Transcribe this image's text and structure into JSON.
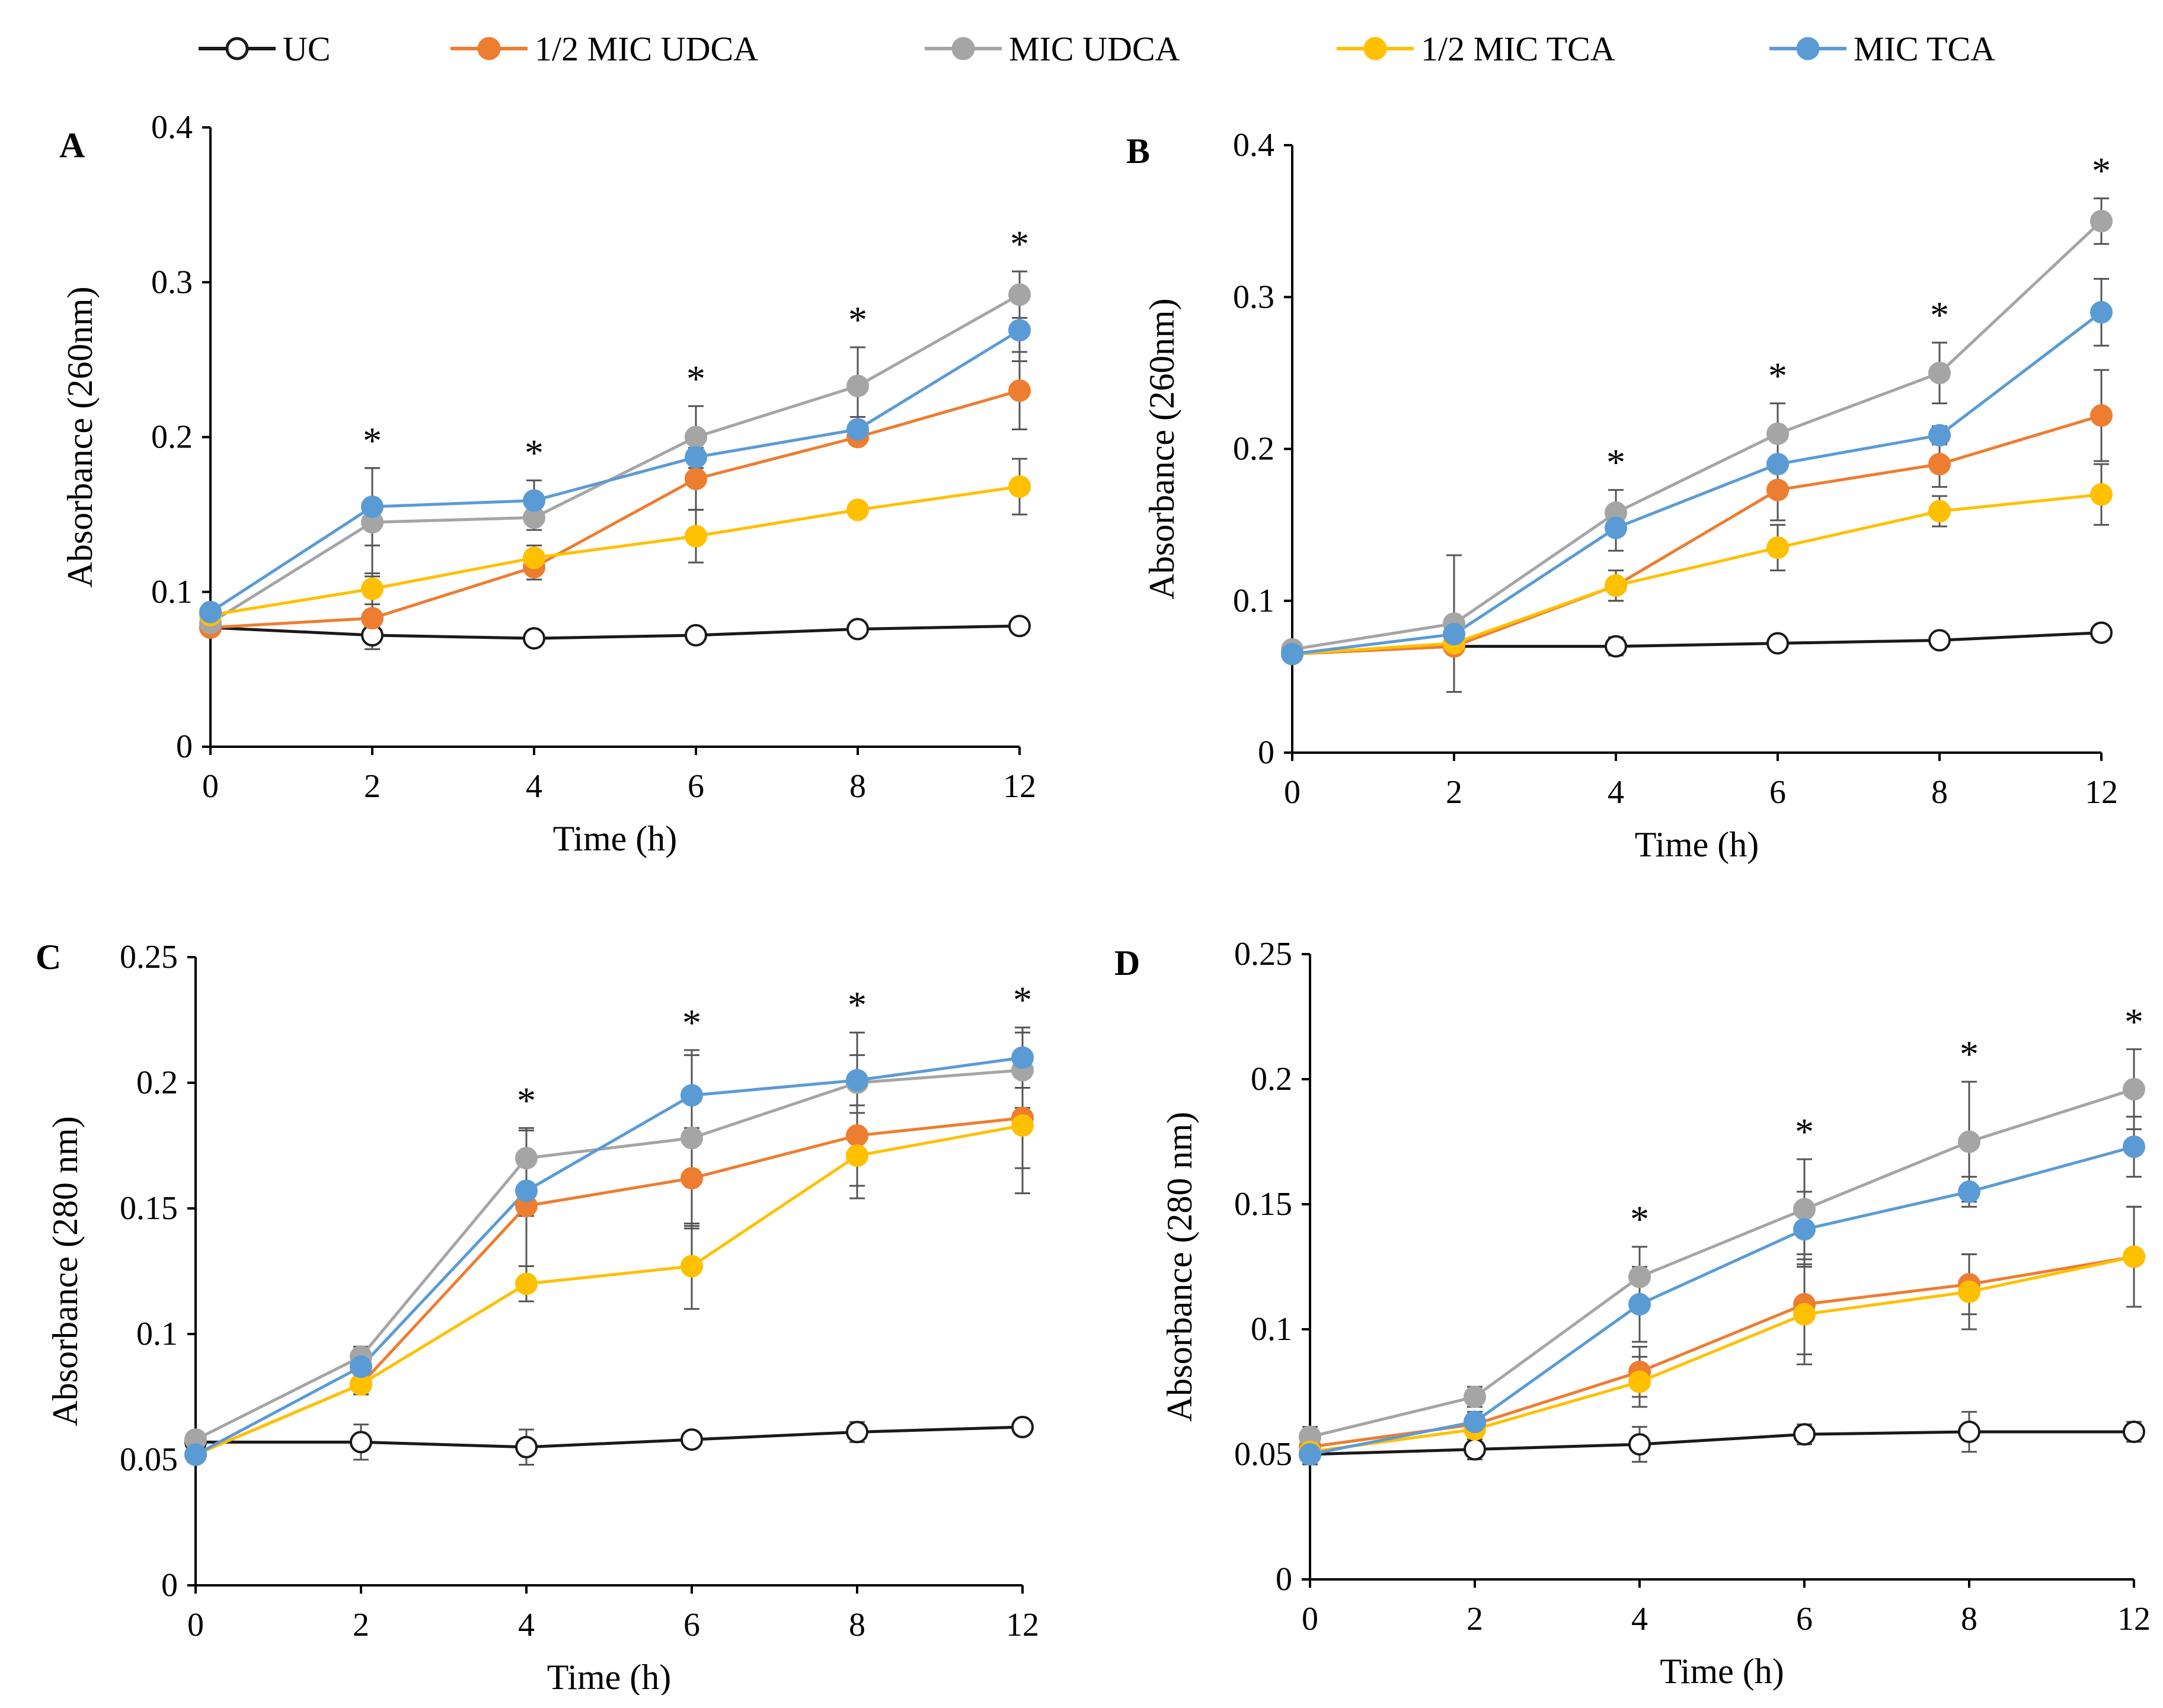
{
  "series_style": [
    {
      "name": "UC",
      "color": "#1a1a1a",
      "fill": "#ffffff"
    },
    {
      "name": "1/2 MIC UDCA",
      "color": "#ED7D31",
      "fill": "#ED7D31"
    },
    {
      "name": "MIC UDCA",
      "color": "#A5A5A5",
      "fill": "#A5A5A5"
    },
    {
      "name": "1/2 MIC TCA",
      "color": "#FFC000",
      "fill": "#FFC000"
    },
    {
      "name": "MIC TCA",
      "color": "#5B9BD5",
      "fill": "#5B9BD5"
    }
  ],
  "chart_data": [
    {
      "panel": "A",
      "type": "line",
      "xlabel": "Time (h)",
      "ylabel": "Absorbance (260nm)",
      "categories": [
        "0",
        "2",
        "4",
        "6",
        "8",
        "12"
      ],
      "ylim": [
        0,
        0.4
      ],
      "yticks": [
        "0",
        "0.1",
        "0.2",
        "0.3",
        "0.4"
      ],
      "significance": [
        false,
        true,
        true,
        true,
        true,
        true
      ],
      "series": [
        {
          "name": "UC",
          "values": [
            0.077,
            0.072,
            0.07,
            0.072,
            0.076,
            0.078
          ],
          "errors": [
            0.003,
            0.003,
            0.003,
            0.003,
            0.003,
            0.003
          ]
        },
        {
          "name": "1/2 MIC UDCA",
          "values": [
            0.077,
            0.083,
            0.116,
            0.173,
            0.2,
            0.23
          ],
          "errors": [
            0.004,
            0.02,
            0.008,
            0.02,
            0.004,
            0.025
          ]
        },
        {
          "name": "MIC UDCA",
          "values": [
            0.08,
            0.145,
            0.148,
            0.2,
            0.233,
            0.292
          ],
          "errors": [
            0.004,
            0.035,
            0.008,
            0.02,
            0.025,
            0.015
          ]
        },
        {
          "name": "1/2 MIC TCA",
          "values": [
            0.085,
            0.102,
            0.122,
            0.136,
            0.153,
            0.168
          ],
          "errors": [
            0.004,
            0.01,
            0.008,
            0.017,
            0.004,
            0.018
          ]
        },
        {
          "name": "MIC TCA",
          "values": [
            0.087,
            0.155,
            0.159,
            0.187,
            0.205,
            0.269
          ],
          "errors": [
            0.004,
            0.025,
            0.013,
            0.015,
            0.008,
            0.02
          ]
        }
      ]
    },
    {
      "panel": "B",
      "type": "line",
      "xlabel": "Time (h)",
      "ylabel": "Absorbance (260nm)",
      "categories": [
        "0",
        "2",
        "4",
        "6",
        "8",
        "12"
      ],
      "ylim": [
        0,
        0.4
      ],
      "yticks": [
        "0",
        "0.1",
        "0.2",
        "0.3",
        "0.4"
      ],
      "significance": [
        false,
        false,
        true,
        true,
        true,
        true
      ],
      "series": [
        {
          "name": "UC",
          "values": [
            0.065,
            0.07,
            0.07,
            0.072,
            0.074,
            0.079
          ],
          "errors": [
            0.003,
            0.004,
            0.006,
            0.003,
            0.004,
            0.003
          ]
        },
        {
          "name": "1/2 MIC UDCA",
          "values": [
            0.065,
            0.07,
            0.11,
            0.173,
            0.19,
            0.222
          ],
          "errors": [
            0.003,
            0.004,
            0.01,
            0.02,
            0.015,
            0.03
          ]
        },
        {
          "name": "MIC UDCA",
          "values": [
            0.068,
            0.085,
            0.158,
            0.21,
            0.25,
            0.35
          ],
          "errors": [
            0.003,
            0.045,
            0.015,
            0.02,
            0.02,
            0.015
          ]
        },
        {
          "name": "1/2 MIC TCA",
          "values": [
            0.065,
            0.072,
            0.11,
            0.135,
            0.159,
            0.17
          ],
          "errors": [
            0.003,
            0.004,
            0.01,
            0.015,
            0.01,
            0.02
          ]
        },
        {
          "name": "MIC TCA",
          "values": [
            0.065,
            0.078,
            0.148,
            0.19,
            0.209,
            0.29
          ],
          "errors": [
            0.003,
            0.004,
            0.015,
            0.02,
            0.006,
            0.022
          ]
        }
      ]
    },
    {
      "panel": "C",
      "type": "line",
      "xlabel": "Time (h)",
      "ylabel": "Absorbance (280 nm)",
      "categories": [
        "0",
        "2",
        "4",
        "6",
        "8",
        "12"
      ],
      "ylim": [
        0,
        0.25
      ],
      "yticks": [
        "0",
        "0.05",
        "0.1",
        "0.15",
        "0.2",
        "0.25"
      ],
      "significance": [
        false,
        false,
        true,
        true,
        true,
        true
      ],
      "series": [
        {
          "name": "UC",
          "values": [
            0.057,
            0.057,
            0.055,
            0.058,
            0.061,
            0.063
          ],
          "errors": [
            0.003,
            0.007,
            0.007,
            0.003,
            0.004,
            0.003
          ]
        },
        {
          "name": "1/2 MIC UDCA",
          "values": [
            0.052,
            0.08,
            0.151,
            0.162,
            0.179,
            0.186
          ],
          "errors": [
            0.003,
            0.004,
            0.03,
            0.02,
            0.02,
            0.02
          ]
        },
        {
          "name": "MIC UDCA",
          "values": [
            0.058,
            0.091,
            0.17,
            0.178,
            0.2,
            0.205
          ],
          "errors": [
            0.003,
            0.004,
            0.012,
            0.035,
            0.02,
            0.015
          ]
        },
        {
          "name": "1/2 MIC TCA",
          "values": [
            0.052,
            0.08,
            0.12,
            0.127,
            0.171,
            0.183
          ],
          "errors": [
            0.003,
            0.004,
            0.007,
            0.017,
            0.017,
            0.027
          ]
        },
        {
          "name": "MIC TCA",
          "values": [
            0.052,
            0.087,
            0.157,
            0.195,
            0.201,
            0.21
          ],
          "errors": [
            0.003,
            0.004,
            0.01,
            0.016,
            0.01,
            0.012
          ]
        }
      ]
    },
    {
      "panel": "D",
      "type": "line",
      "xlabel": "Time (h)",
      "ylabel": "Absorbance (280 nm)",
      "categories": [
        "0",
        "2",
        "4",
        "6",
        "8",
        "12"
      ],
      "ylim": [
        0,
        0.25
      ],
      "yticks": [
        "0",
        "0.05",
        "0.1",
        "0.15",
        "0.2",
        "0.25"
      ],
      "significance": [
        false,
        false,
        true,
        true,
        true,
        true
      ],
      "series": [
        {
          "name": "UC",
          "values": [
            0.05,
            0.052,
            0.054,
            0.058,
            0.059,
            0.059
          ],
          "errors": [
            0.004,
            0.004,
            0.007,
            0.004,
            0.008,
            0.004
          ]
        },
        {
          "name": "1/2 MIC UDCA",
          "values": [
            0.053,
            0.062,
            0.083,
            0.11,
            0.118,
            0.129
          ],
          "errors": [
            0.004,
            0.004,
            0.01,
            0.02,
            0.012,
            0.02
          ]
        },
        {
          "name": "MIC UDCA",
          "values": [
            0.057,
            0.073,
            0.121,
            0.148,
            0.175,
            0.196
          ],
          "errors": [
            0.004,
            0.004,
            0.012,
            0.02,
            0.024,
            0.016
          ]
        },
        {
          "name": "1/2 MIC TCA",
          "values": [
            0.051,
            0.06,
            0.079,
            0.106,
            0.115,
            0.129
          ],
          "errors": [
            0.004,
            0.004,
            0.01,
            0.02,
            0.015,
            0.02
          ]
        },
        {
          "name": "MIC TCA",
          "values": [
            0.05,
            0.063,
            0.11,
            0.14,
            0.155,
            0.173
          ],
          "errors": [
            0.004,
            0.004,
            0.015,
            0.015,
            0.006,
            0.012
          ]
        }
      ]
    }
  ]
}
